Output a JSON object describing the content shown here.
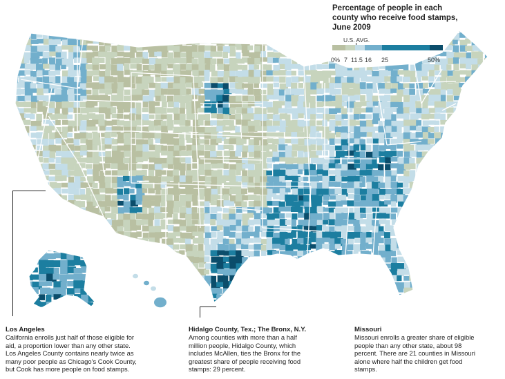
{
  "legend": {
    "title_lines": [
      "Percentage of people in each",
      "county who receive food stamps,",
      "June 2009"
    ],
    "avg_label": "U.S. AVG.",
    "ticks": [
      "0%",
      "7",
      "11.5",
      "16",
      "25",
      "50%"
    ],
    "colors": {
      "bin_0_7": "#b9c0a2",
      "bin_7_11": "#c7d4bd",
      "bin_11_16": "#c3dde8",
      "bin_16_25": "#72afcc",
      "bin_25_50": "#1c7ea0",
      "bin_50_plus": "#0b4d6b",
      "state_border": "#ffffff"
    }
  },
  "annotations": [
    {
      "title": "Los Angeles",
      "lines": [
        "California enrolls just half of those eligible for",
        "aid, a proportion lower than any other state.",
        "Los Angeles County contains nearly twice as",
        "many poor people as Chicago’s Cook County,",
        "but Cook has more people on food stamps."
      ]
    },
    {
      "title": "Hidalgo County, Tex.; The Bronx, N.Y.",
      "lines": [
        "Among counties with more than a half",
        "million people, Hidalgo County, which",
        "includes McAllen, ties the Bronx for the",
        "greatest share of people receiving food",
        "stamps: 29 percent."
      ]
    },
    {
      "title": "Missouri",
      "lines": [
        "Missouri enrolls a greater share of eligible",
        "people than any other state, about 98",
        "percent. There are 21 counties in Missouri",
        "alone where half the children get food",
        "stamps."
      ]
    }
  ]
}
